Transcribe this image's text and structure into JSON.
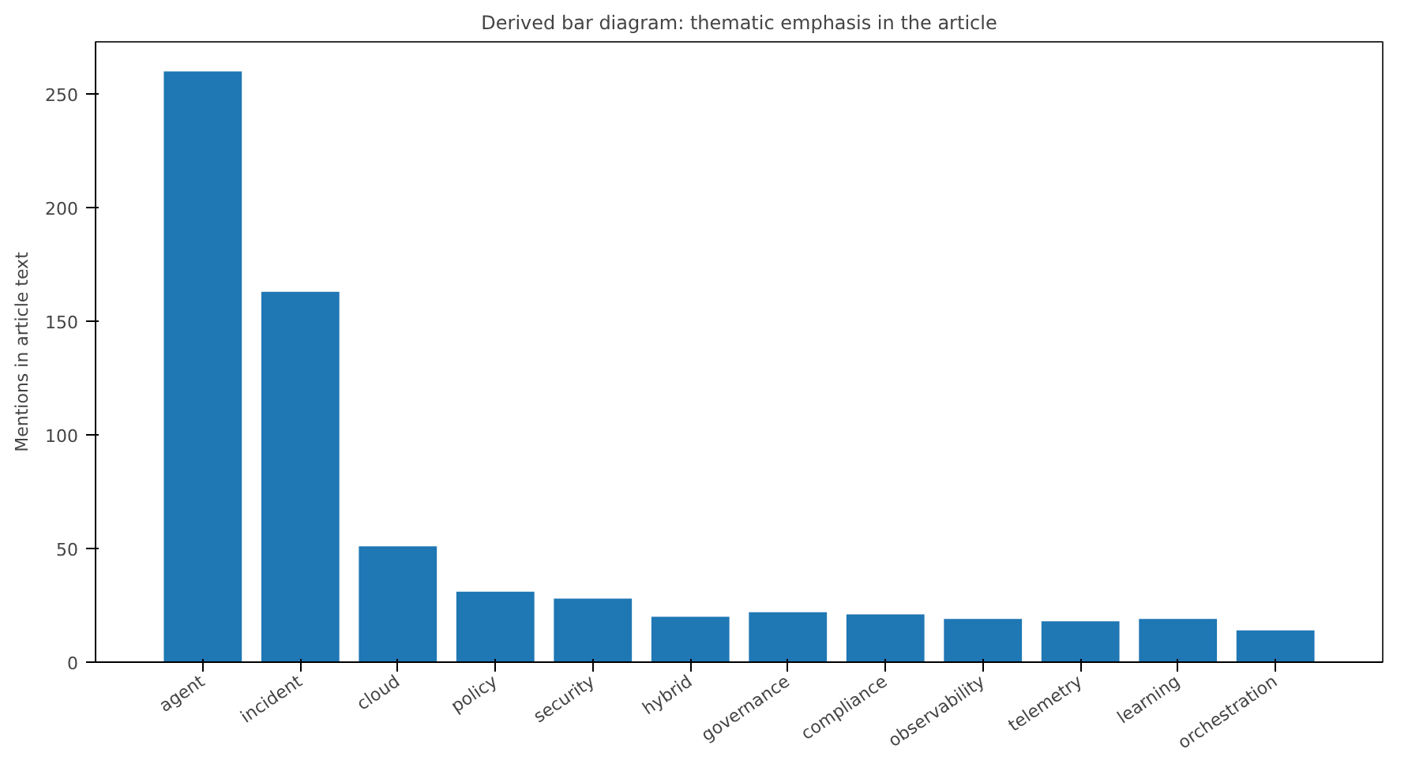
{
  "chart_data": {
    "type": "bar",
    "title": "Derived bar diagram: thematic emphasis in the article",
    "ylabel": "Mentions in article text",
    "categories": [
      "agent",
      "incident",
      "cloud",
      "policy",
      "security",
      "hybrid",
      "governance",
      "compliance",
      "observability",
      "telemetry",
      "learning",
      "orchestration"
    ],
    "values": [
      260,
      163,
      51,
      31,
      28,
      20,
      22,
      21,
      19,
      18,
      19,
      14
    ],
    "color": "#1f77b4",
    "ylim": [
      0,
      273
    ],
    "yticks": [
      0,
      50,
      100,
      150,
      200,
      250
    ],
    "grid": false
  }
}
